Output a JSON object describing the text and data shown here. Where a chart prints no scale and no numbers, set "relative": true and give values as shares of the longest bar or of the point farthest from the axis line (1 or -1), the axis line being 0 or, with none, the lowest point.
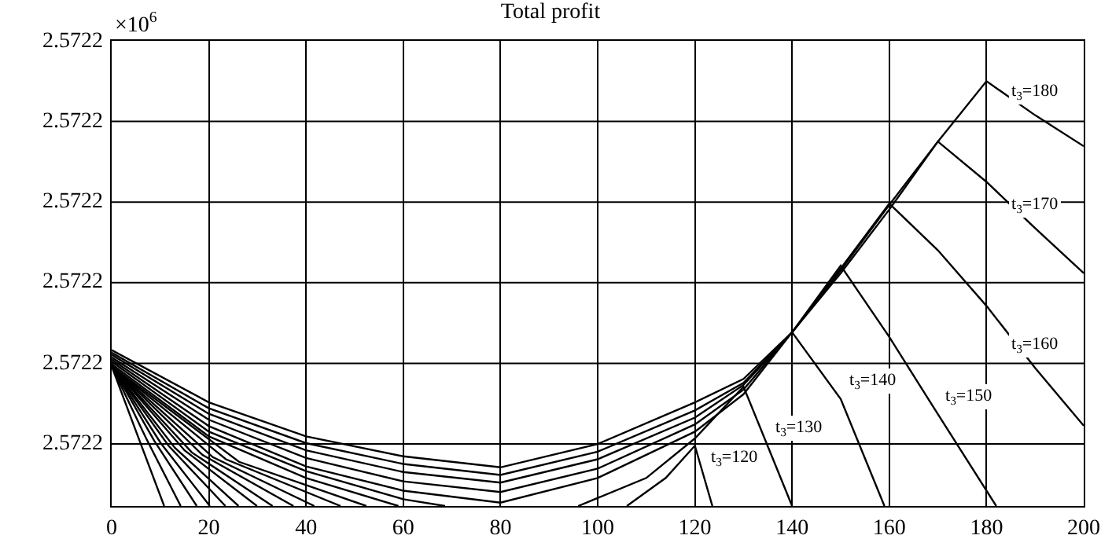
{
  "chart_data": {
    "type": "line",
    "title": "Total profit",
    "relative": true,
    "annotations": [
      "×10$^{6}$",
      "2.5722",
      "2.5722",
      "2.5722",
      "2.5722",
      "2.5722",
      "2.5722",
      {
        "text": "t$_{3}$=180",
        "x": 190,
        "y": 0.92
      },
      {
        "text": "t$_{3}$=170",
        "x": 190,
        "y": 0.654
      },
      {
        "text": "t$_{3}$=160",
        "x": 190,
        "y": 0.325
      },
      {
        "text": "t$_{3}$=150",
        "x": 170,
        "y": 0.216
      },
      {
        "text": "t$_{3}$=140",
        "x": 150,
        "y": 0.252
      },
      {
        "text": "t$_{3}$=130",
        "x": 135,
        "y": 0.14
      },
      {
        "text": "t$_{3}$=120",
        "x": 121.8,
        "y": 0.071
      }
    ],
    "series": [
      {
        "color": "#000000",
        "x": [
          0,
          20,
          40,
          60,
          80,
          100,
          120,
          130,
          140,
          150,
          160,
          170,
          180,
          190,
          200
        ],
        "values": [
          0.367,
          0.244,
          0.164,
          0.117,
          0.091,
          0.146,
          0.244,
          0.299,
          0.409,
          0.555,
          0.709,
          0.858,
          1,
          0.92,
          0.847
        ]
      },
      {
        "color": "#000000",
        "x": [
          0,
          20,
          40,
          60,
          80,
          100,
          120,
          130,
          140,
          150,
          160,
          170,
          180,
          190,
          200
        ],
        "values": [
          0.361,
          0.23,
          0.148,
          0.099,
          0.073,
          0.128,
          0.225,
          0.29,
          0.409,
          0.548,
          0.698,
          0.858,
          0.763,
          0.654,
          0.548
        ]
      },
      {
        "color": "#000000",
        "x": [
          0,
          20,
          40,
          60,
          80,
          100,
          120,
          130,
          140,
          150,
          160,
          170,
          180,
          190,
          200
        ],
        "values": [
          0.356,
          0.217,
          0.131,
          0.08,
          0.055,
          0.11,
          0.208,
          0.285,
          0.409,
          0.559,
          0.712,
          0.602,
          0.471,
          0.325,
          0.189
        ]
      },
      {
        "color": "#000000",
        "x": [
          0,
          20,
          40,
          60,
          80,
          100,
          120,
          130,
          140,
          150,
          160,
          170,
          182
        ],
        "values": [
          0.35,
          0.203,
          0.113,
          0.058,
          0.033,
          0.088,
          0.192,
          0.274,
          0.409,
          0.566,
          0.398,
          0.216,
          0
        ]
      },
      {
        "color": "#000000",
        "x": [
          0,
          20,
          40,
          60,
          80,
          100,
          120,
          130,
          140,
          150,
          159
        ],
        "values": [
          0.345,
          0.188,
          0.093,
          0.036,
          0.008,
          0.066,
          0.175,
          0.263,
          0.409,
          0.252,
          0
        ]
      },
      {
        "color": "#000000",
        "x": [
          0,
          20,
          40,
          60,
          68.6,
          82,
          96,
          110,
          120,
          130,
          140
        ],
        "values": [
          0.34,
          0.175,
          0.082,
          0.016,
          0,
          null,
          0,
          0.066,
          0.159,
          0.281,
          0
        ]
      },
      {
        "color": "#000000",
        "x": [
          0,
          20,
          40,
          59,
          82,
          106,
          114,
          120,
          123.6
        ],
        "values": [
          0.334,
          0.164,
          0.066,
          0,
          null,
          0,
          0.066,
          0.142,
          0
        ]
      },
      {
        "color": "#000000",
        "x": [
          0,
          5.4,
          10.8
        ],
        "values": [
          0.329,
          0.164,
          0
        ]
      },
      {
        "color": "#000000",
        "x": [
          0,
          7.1,
          14.2
        ],
        "values": [
          0.329,
          0.159,
          0
        ]
      },
      {
        "color": "#000000",
        "x": [
          0,
          8.8,
          17.5
        ],
        "values": [
          0.329,
          0.153,
          0
        ]
      },
      {
        "color": "#000000",
        "x": [
          0,
          10.1,
          20.2
        ],
        "values": [
          0.329,
          0.148,
          0
        ]
      },
      {
        "color": "#000000",
        "x": [
          0,
          11.7,
          23.4
        ],
        "values": [
          0.329,
          0.142,
          0
        ]
      },
      {
        "color": "#000000",
        "x": [
          0,
          13,
          26.1
        ],
        "values": [
          0.329,
          0.137,
          0
        ]
      },
      {
        "color": "#000000",
        "x": [
          0,
          15,
          29.9
        ],
        "values": [
          0.329,
          0.131,
          0
        ]
      },
      {
        "color": "#000000",
        "x": [
          0,
          16.5,
          33.1
        ],
        "values": [
          0.329,
          0.126,
          0
        ]
      },
      {
        "color": "#000000",
        "x": [
          0,
          18.7,
          37.4
        ],
        "values": [
          0.329,
          0.12,
          0
        ]
      },
      {
        "color": "#000000",
        "x": [
          0,
          20.8,
          41.7
        ],
        "values": [
          0.329,
          0.115,
          0
        ]
      },
      {
        "color": "#000000",
        "x": [
          0,
          23.5,
          47.1
        ],
        "values": [
          0.329,
          0.11,
          0
        ]
      },
      {
        "color": "#000000",
        "x": [
          0,
          26.2,
          52.4
        ],
        "values": [
          0.329,
          0.104,
          0
        ]
      }
    ],
    "xlim": [
      0,
      200
    ],
    "xticks": [
      0,
      20,
      40,
      60,
      80,
      100,
      120,
      140,
      160,
      180,
      200
    ],
    "grid": true,
    "marker": "none",
    "line_style": "solid"
  }
}
